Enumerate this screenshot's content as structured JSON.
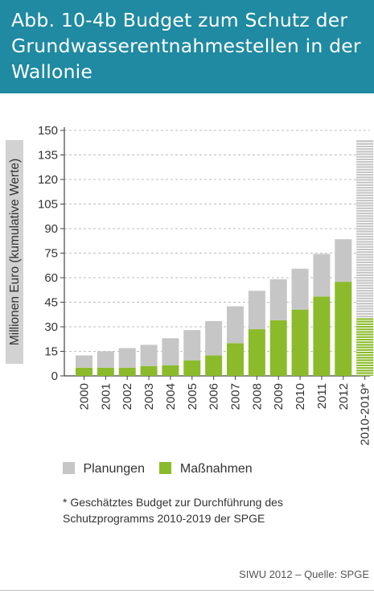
{
  "title": "Abb. 10-4b Budget zum Schutz der Grundwasserentnahmestellen in der Wallonie",
  "legend": {
    "planungen": "Planungen",
    "massnahmen": "Maßnahmen"
  },
  "footnote": "* Geschätztes Budget zur Durchführung des Schutzprogramms 2010-2019 der SPGE",
  "source": "SIWU 2012 – Quelle: SPGE",
  "colors": {
    "header": "#1f8aa2",
    "planungen": "#c6c6c6",
    "massnahmen": "#8bbb2a",
    "axis": "#444444",
    "grid": "#bdbdbd"
  },
  "chart_data": {
    "type": "bar",
    "stacked": true,
    "ylabel": "Millionen Euro (kumulative Werte)",
    "xlabel": "",
    "ylim": [
      0,
      150
    ],
    "yticks": [
      0,
      15,
      30,
      45,
      60,
      75,
      90,
      105,
      120,
      135,
      150
    ],
    "grid": "dashed horizontal",
    "categories": [
      "2000",
      "2001",
      "2002",
      "2003",
      "2004",
      "2005",
      "2006",
      "2007",
      "2008",
      "2009",
      "2010",
      "2011",
      "2012",
      "2010-2019*"
    ],
    "series": [
      {
        "name": "Maßnahmen",
        "values": [
          5,
          5,
          5,
          6,
          6.5,
          9.5,
          12.5,
          20,
          28.5,
          34,
          40.5,
          48.5,
          57.5,
          35.5
        ]
      },
      {
        "name": "Planungen",
        "values": [
          7.5,
          10,
          12,
          13,
          16.5,
          18.5,
          21,
          22.5,
          23.5,
          25,
          25,
          26,
          26,
          108.5
        ]
      }
    ],
    "estimated_category": "2010-2019*"
  }
}
